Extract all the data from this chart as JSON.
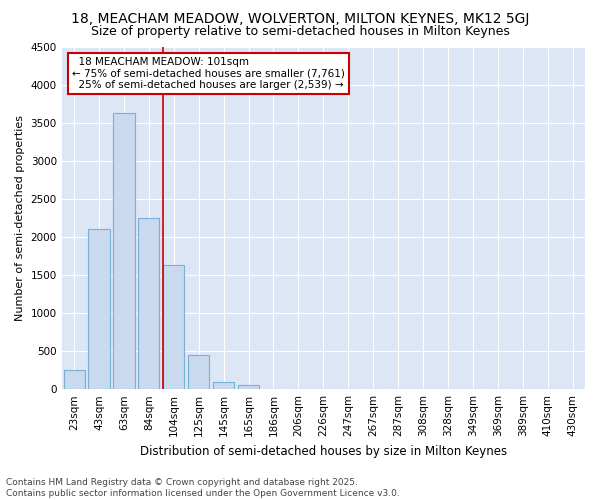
{
  "title1": "18, MEACHAM MEADOW, WOLVERTON, MILTON KEYNES, MK12 5GJ",
  "title2": "Size of property relative to semi-detached houses in Milton Keynes",
  "xlabel": "Distribution of semi-detached houses by size in Milton Keynes",
  "ylabel": "Number of semi-detached properties",
  "categories": [
    "23sqm",
    "43sqm",
    "63sqm",
    "84sqm",
    "104sqm",
    "125sqm",
    "145sqm",
    "165sqm",
    "186sqm",
    "206sqm",
    "226sqm",
    "247sqm",
    "267sqm",
    "287sqm",
    "308sqm",
    "328sqm",
    "349sqm",
    "369sqm",
    "389sqm",
    "410sqm",
    "430sqm"
  ],
  "values": [
    250,
    2100,
    3625,
    2250,
    1625,
    450,
    100,
    55,
    0,
    0,
    0,
    0,
    0,
    0,
    0,
    0,
    0,
    0,
    0,
    0,
    0
  ],
  "bar_color": "#c9d9ee",
  "bar_edge_color": "#7bafd4",
  "vline_index": 4,
  "vline_color": "#cc0000",
  "property_label": "18 MEACHAM MEADOW: 101sqm",
  "smaller_pct": "75%",
  "smaller_count": "7,761",
  "larger_pct": "25%",
  "larger_count": "2,539",
  "annotation_box_color": "#cc0000",
  "ylim": [
    0,
    4500
  ],
  "yticks": [
    0,
    500,
    1000,
    1500,
    2000,
    2500,
    3000,
    3500,
    4000,
    4500
  ],
  "fig_bg_color": "#ffffff",
  "plot_bg_color": "#dce6f5",
  "grid_color": "#ffffff",
  "footer1": "Contains HM Land Registry data © Crown copyright and database right 2025.",
  "footer2": "Contains public sector information licensed under the Open Government Licence v3.0.",
  "title1_fontsize": 10,
  "title2_fontsize": 9,
  "xlabel_fontsize": 8.5,
  "ylabel_fontsize": 8,
  "tick_fontsize": 7.5,
  "annot_fontsize": 7.5,
  "footer_fontsize": 6.5
}
